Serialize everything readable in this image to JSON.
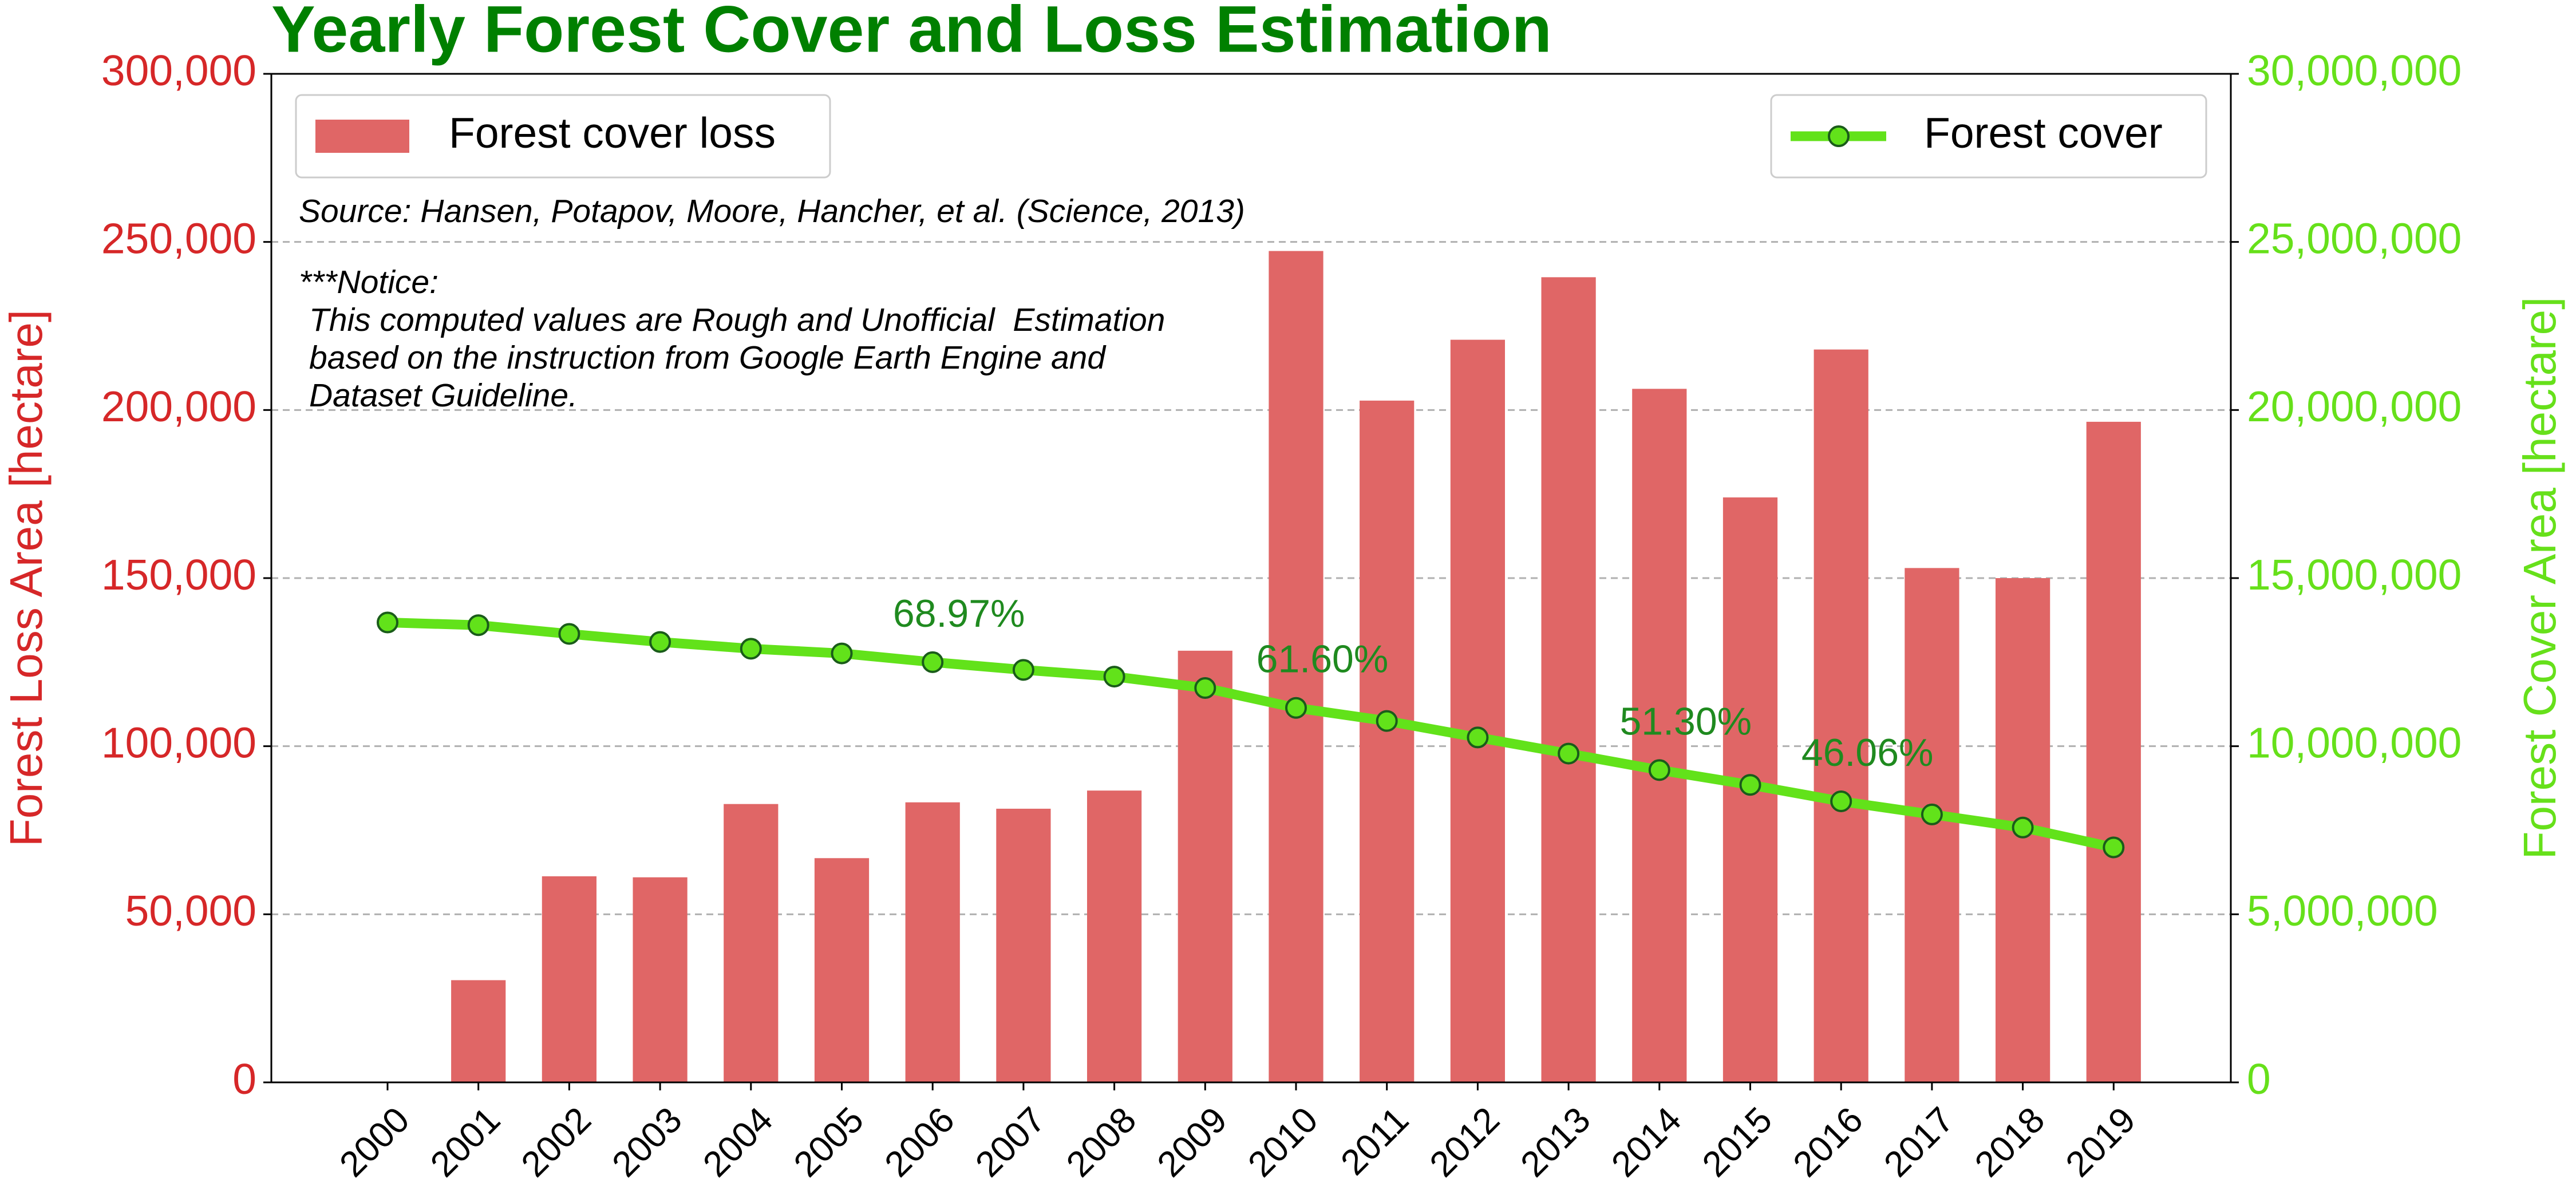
{
  "chart_data": {
    "type": "bar",
    "title": "Yearly Forest Cover and Loss Estimation",
    "categories": [
      "2000",
      "2001",
      "2002",
      "2003",
      "2004",
      "2005",
      "2006",
      "2007",
      "2008",
      "2009",
      "2010",
      "2011",
      "2012",
      "2013",
      "2014",
      "2015",
      "2016",
      "2017",
      "2018",
      "2019"
    ],
    "series": [
      {
        "name": "Forest cover loss",
        "type": "bar",
        "color": "#e06666",
        "legend_loc": "upper left",
        "values": [
          0,
          30400,
          61300,
          61000,
          82800,
          66700,
          83300,
          81400,
          86800,
          128400,
          247300,
          202800,
          220900,
          239500,
          206300,
          174000,
          218000,
          153000,
          150000,
          196500
        ]
      },
      {
        "name": "Forest cover",
        "type": "line",
        "axis": "y2",
        "color": "#62e21a",
        "legend_loc": "upper right",
        "values": [
          13680000,
          13600000,
          13340000,
          13100000,
          12900000,
          12760000,
          12500000,
          12270000,
          12070000,
          11730000,
          11140000,
          10750000,
          10260000,
          9780000,
          9290000,
          8850000,
          8360000,
          7970000,
          7580000,
          6990000
        ]
      }
    ],
    "ylabel": "Forest Loss Area [hectare]",
    "y2label": "Forest Cover Area [hectare]",
    "ylim": [
      0,
      300000
    ],
    "yticks": [
      0,
      {
        "value": 50000,
        "label": "50,000"
      },
      {
        "value": 100000,
        "label": "100,000"
      },
      {
        "value": 150000,
        "label": "150,000"
      },
      {
        "value": 200000,
        "label": "200,000"
      },
      {
        "value": 250000,
        "label": "250,000"
      },
      {
        "value": 300000,
        "label": "300,000"
      }
    ],
    "y2lim": [
      0,
      30000000
    ],
    "y2ticks": [
      0,
      {
        "value": 5000000,
        "label": "5,000,000"
      },
      {
        "value": 10000000,
        "label": "10,000,000"
      },
      {
        "value": 15000000,
        "label": "15,000,000"
      },
      {
        "value": 20000000,
        "label": "20,000,000"
      },
      {
        "value": 25000000,
        "label": "25,000,000"
      },
      {
        "value": 30000000,
        "label": "30,000,000"
      }
    ],
    "grid": true,
    "source": "Source: Hansen, Potapov, Moore, Hancher, et al. (Science, 2013)",
    "notice": [
      "***Notice:",
      "This computed values are Rough and Unofficial  Estimation",
      "based on the instruction from Google Earth Engine and",
      "Dataset Guideline."
    ],
    "annotations": [
      {
        "text": "68.97%",
        "category": "2006"
      },
      {
        "text": "61.60%",
        "category": "2010"
      },
      {
        "text": "51.30%",
        "category": "2014"
      },
      {
        "text": "46.06%",
        "category": "2016"
      }
    ]
  }
}
